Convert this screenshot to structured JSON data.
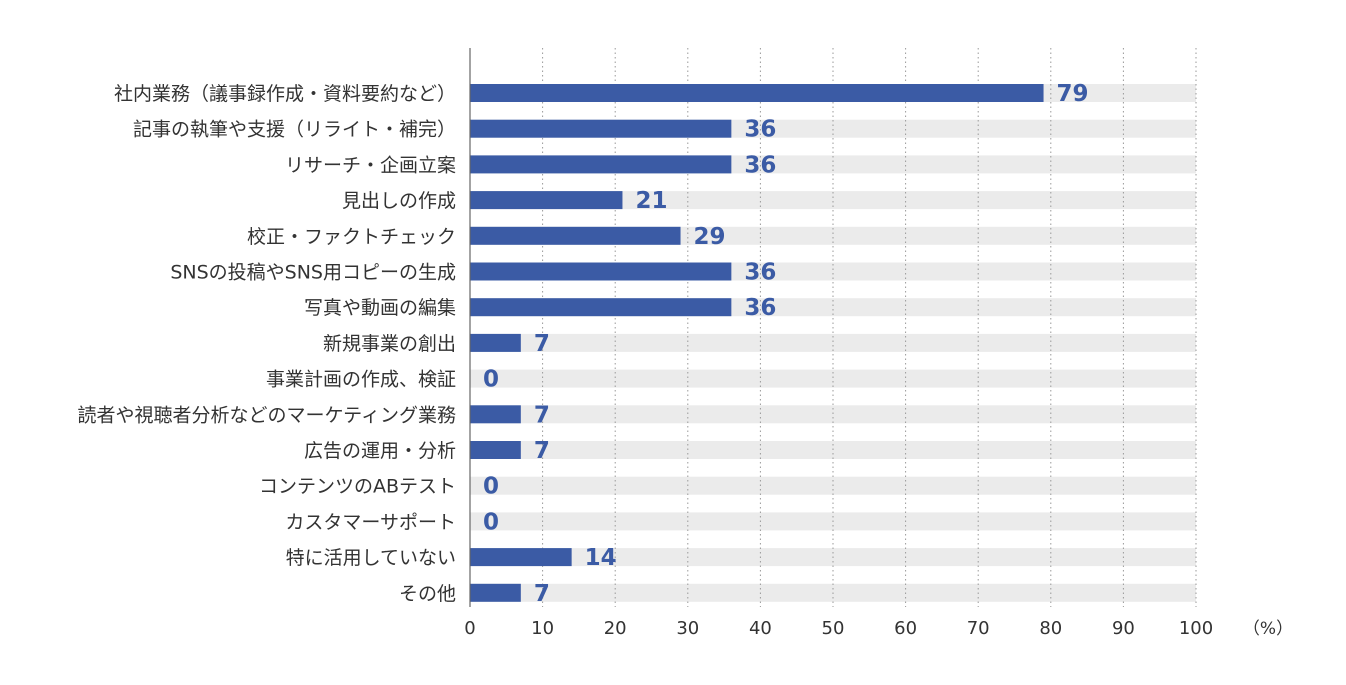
{
  "chart_data": {
    "type": "bar",
    "orientation": "horizontal",
    "categories": [
      "社内業務（議事録作成・資料要約など）",
      "記事の執筆や支援（リライト・補完）",
      "リサーチ・企画立案",
      "見出しの作成",
      "校正・ファクトチェック",
      "SNSの投稿やSNS用コピーの生成",
      "写真や動画の編集",
      "新規事業の創出",
      "事業計画の作成、検証",
      "読者や視聴者分析などのマーケティング業務",
      "広告の運用・分析",
      "コンテンツのABテスト",
      "カスタマーサポート",
      "特に活用していない",
      "その他"
    ],
    "values": [
      79,
      36,
      36,
      21,
      29,
      36,
      36,
      7,
      0,
      7,
      7,
      0,
      0,
      14,
      7
    ],
    "value_labels": [
      "79",
      "36",
      "36",
      "21",
      "29",
      "36",
      "36",
      "7",
      "0",
      "7",
      "7",
      "0",
      "0",
      "14",
      "7"
    ],
    "xlim": [
      0,
      100
    ],
    "x_ticks": [
      "0",
      "10",
      "20",
      "30",
      "40",
      "50",
      "60",
      "70",
      "80",
      "90",
      "100"
    ],
    "x_unit": "（%）",
    "title": "",
    "xlabel": "",
    "ylabel": "",
    "grid": "vertical-dotted",
    "legend": "none",
    "colors": {
      "bar": "#3b5ba5",
      "track": "#ebebeb",
      "value_label": "#3b5ba5",
      "axis": "#666666",
      "grid": "#999999"
    }
  }
}
